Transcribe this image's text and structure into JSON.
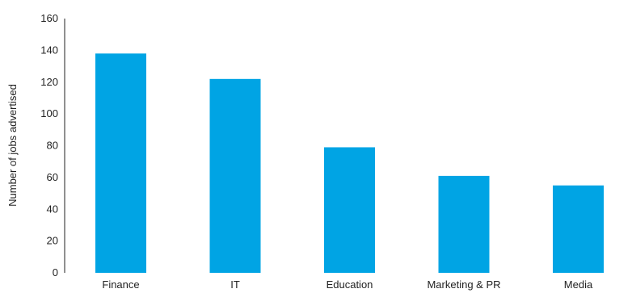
{
  "chart_data": {
    "type": "bar",
    "categories": [
      "Finance",
      "IT",
      "Education",
      "Marketing & PR",
      "Media"
    ],
    "values": [
      138,
      122,
      79,
      61,
      55
    ],
    "title": "",
    "xlabel": "",
    "ylabel": "Number of jobs advertised",
    "ylim": [
      0,
      160
    ],
    "yticks": [
      0,
      20,
      40,
      60,
      80,
      100,
      120,
      140,
      160
    ],
    "grid": false,
    "legend": "none",
    "bar_color": "#00A4E4"
  }
}
